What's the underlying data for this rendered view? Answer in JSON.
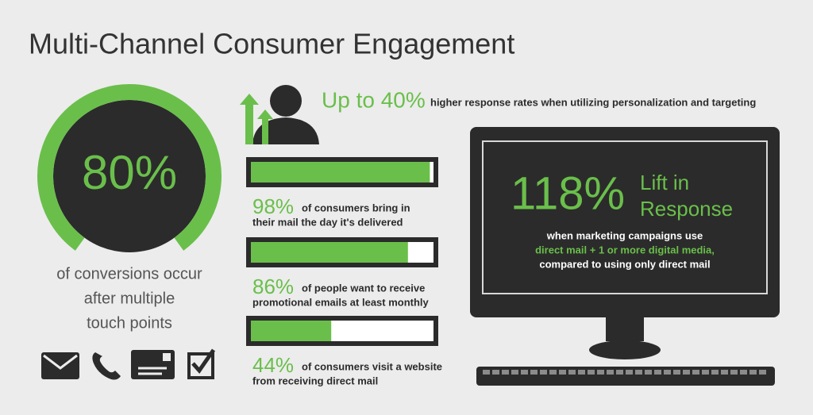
{
  "title": "Multi-Channel Consumer Engagement",
  "conversions": {
    "value": 80,
    "label": "80%",
    "lines": [
      "of conversions occur",
      "after multiple",
      "touch points"
    ]
  },
  "response": {
    "label": "Up to 40%",
    "text": "higher response rates when utilizing personalization and targeting"
  },
  "stats": [
    {
      "value": 98,
      "label": "98%",
      "lines": [
        "of consumers bring in",
        "their mail the day it's delivered"
      ]
    },
    {
      "value": 86,
      "label": "86%",
      "lines": [
        "of people want to receive",
        "promotional emails at least monthly"
      ]
    },
    {
      "value": 44,
      "label": "44%",
      "lines": [
        "of consumers visit a website",
        "from receiving direct mail"
      ]
    }
  ],
  "lift": {
    "label": "118%",
    "heading": [
      "Lift in",
      "Response"
    ],
    "lines": [
      "when marketing campaigns use",
      "direct mail + 1 or more digital media,",
      "compared to using only direct mail"
    ]
  }
}
